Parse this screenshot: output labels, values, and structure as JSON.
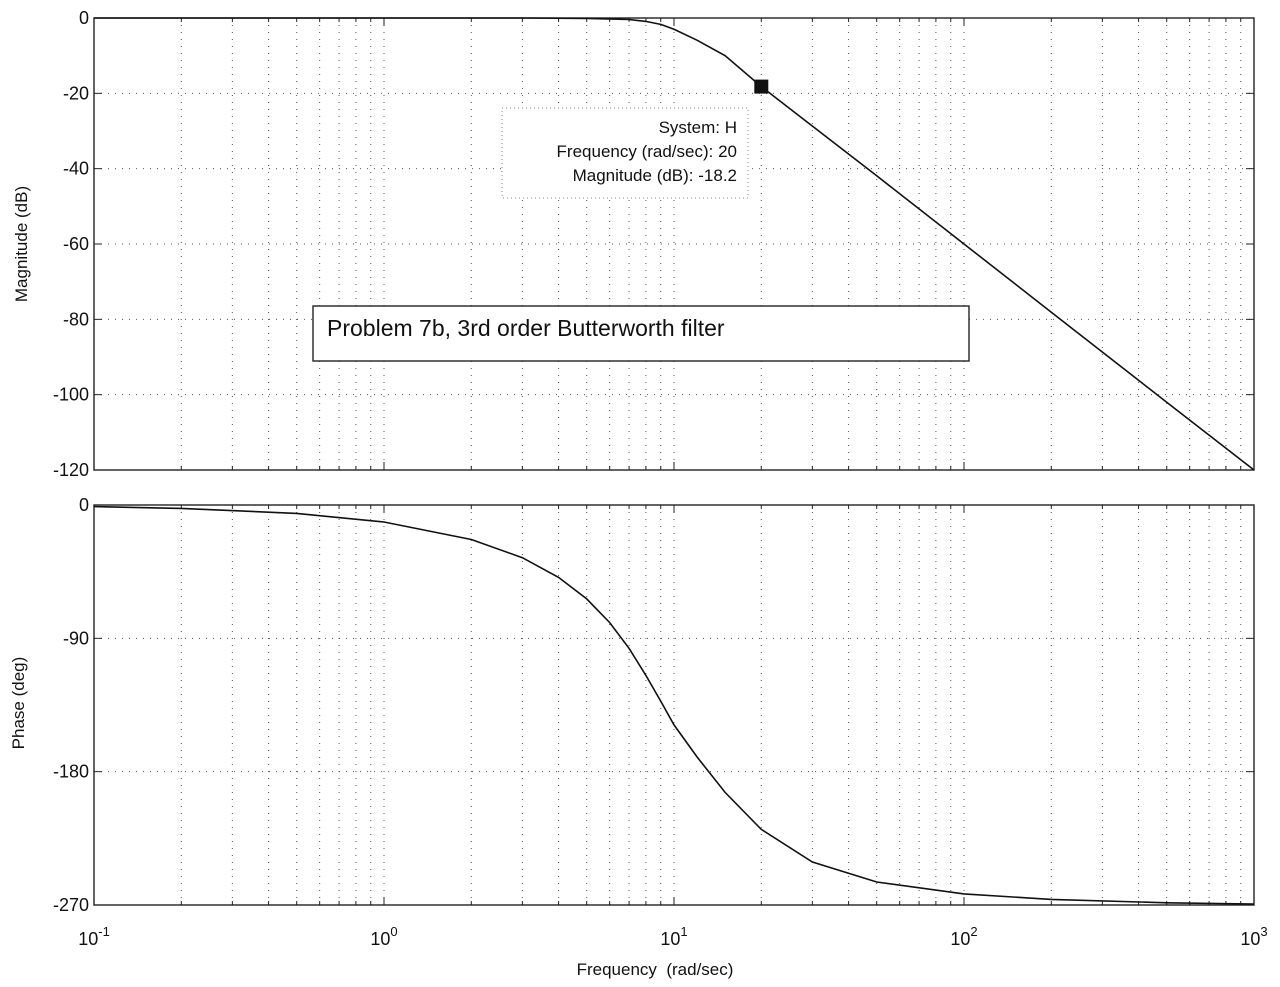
{
  "chart_data": [
    {
      "type": "line",
      "xscale": "log",
      "xlim": [
        0.1,
        1000
      ],
      "ylim": [
        -120,
        0
      ],
      "ylabel": "Magnitude (dB)",
      "yticks": [
        0,
        -20,
        -40,
        -60,
        -80,
        -100,
        -120
      ],
      "ytick_labels": [
        "0",
        "-20",
        "-40",
        "-60",
        "-80",
        "-100",
        "-120"
      ],
      "grid": true,
      "series": [
        {
          "x": [
            0.1,
            0.2,
            0.5,
            1,
            2,
            3,
            5,
            7,
            8,
            9,
            10,
            12,
            15,
            20,
            30,
            50,
            100,
            200,
            500,
            1000
          ],
          "values": [
            0,
            0,
            0,
            0,
            0,
            0,
            -0.1,
            -0.4,
            -0.9,
            -1.7,
            -3.0,
            -5.9,
            -10.0,
            -18.2,
            -28.7,
            -41.9,
            -60.0,
            -78.1,
            -102.0,
            -120.0
          ]
        }
      ],
      "datatip": {
        "x": 20,
        "y": -18.2,
        "lines": [
          "System: H",
          "Frequency (rad/sec): 20",
          "Magnitude (dB): -18.2"
        ]
      },
      "annotation": "Problem 7b, 3rd order Butterworth filter"
    },
    {
      "type": "line",
      "xscale": "log",
      "xlim": [
        0.1,
        1000
      ],
      "ylim": [
        -270,
        0
      ],
      "ylabel": "Phase (deg)",
      "xlabel": "Frequency  (rad/sec)",
      "yticks": [
        0,
        -90,
        -180,
        -270
      ],
      "ytick_labels": [
        "0",
        "-90",
        "-180",
        "-270"
      ],
      "xticks": [
        {
          "base": "10",
          "exp": "-1"
        },
        {
          "base": "10",
          "exp": "0"
        },
        {
          "base": "10",
          "exp": "1"
        },
        {
          "base": "10",
          "exp": "2"
        },
        {
          "base": "10",
          "exp": "3"
        }
      ],
      "grid": true,
      "series": [
        {
          "x": [
            0.1,
            0.2,
            0.5,
            1,
            2,
            3,
            4,
            5,
            6,
            7,
            8,
            9,
            10,
            12,
            15,
            20,
            30,
            50,
            100,
            200,
            500,
            1000
          ],
          "values": [
            -1.1,
            -2.3,
            -5.7,
            -11.5,
            -23.3,
            -35.6,
            -48.9,
            -63.4,
            -79.4,
            -96.8,
            -115.0,
            -132.4,
            -148.4,
            -170.0,
            -194.0,
            -219.0,
            -241.0,
            -254.5,
            -262.5,
            -266.2,
            -268.5,
            -269.3
          ]
        }
      ]
    }
  ]
}
